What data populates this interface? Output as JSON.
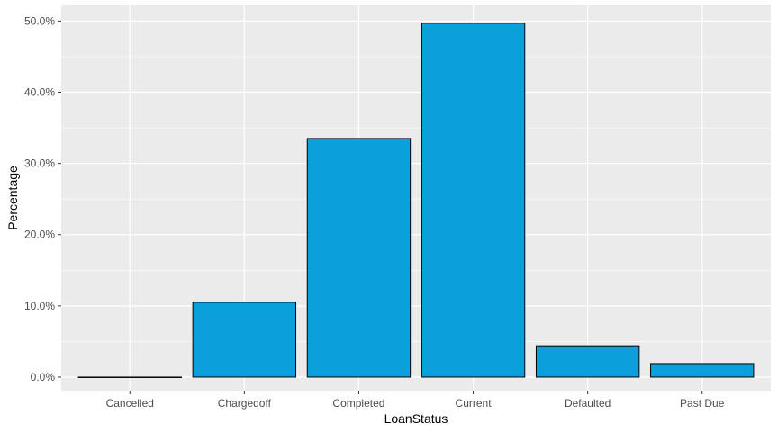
{
  "chart_data": {
    "type": "bar",
    "categories": [
      "Cancelled",
      "Chargedoff",
      "Completed",
      "Current",
      "Defaulted",
      "Past Due"
    ],
    "values": [
      0.0,
      10.5,
      33.5,
      49.7,
      4.4,
      1.9
    ],
    "xlabel": "LoanStatus",
    "ylabel": "Percentage",
    "ylim": [
      -1.9,
      52.2
    ],
    "yticks": [
      0,
      10,
      20,
      30,
      40,
      50
    ],
    "ytick_labels": [
      "0.0%",
      "10.0%",
      "20.0%",
      "30.0%",
      "40.0%",
      "50.0%"
    ],
    "grid": true,
    "legend": "none",
    "colors": {
      "bar_fill": "#0b9fdb",
      "bar_stroke": "#000000",
      "panel_bg": "#ebebeb",
      "grid_major": "#ffffff"
    }
  }
}
